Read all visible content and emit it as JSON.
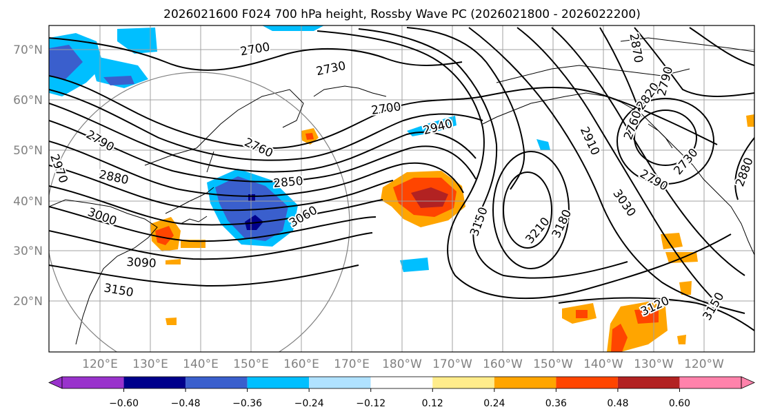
{
  "title": "2026021600 F024 700 hPa height, Rossby Wave PC (2026021800 - 2026022200)",
  "lat_labels": [
    "70°N",
    "60°N",
    "50°N",
    "40°N",
    "30°N",
    "20°N"
  ],
  "lon_labels": [
    "120°E",
    "130°E",
    "140°E",
    "150°E",
    "160°E",
    "170°E",
    "180°W",
    "170°W",
    "160°W",
    "150°W",
    "140°W",
    "130°W",
    "120°W"
  ],
  "contour_labels": [
    {
      "text": "2700"
    },
    {
      "text": "2730"
    },
    {
      "text": "2700"
    },
    {
      "text": "2790"
    },
    {
      "text": "2880"
    },
    {
      "text": "2760"
    },
    {
      "text": "2850"
    },
    {
      "text": "3060"
    },
    {
      "text": "3000"
    },
    {
      "text": "3090"
    },
    {
      "text": "3150"
    },
    {
      "text": "2940"
    },
    {
      "text": "3150"
    },
    {
      "text": "3210"
    },
    {
      "text": "3180"
    },
    {
      "text": "2910"
    },
    {
      "text": "3030"
    },
    {
      "text": "2790"
    },
    {
      "text": "2760"
    },
    {
      "text": "2820"
    },
    {
      "text": "2870"
    },
    {
      "text": "2790"
    },
    {
      "text": "2730"
    },
    {
      "text": "2880"
    },
    {
      "text": "3120"
    },
    {
      "text": "3150"
    },
    {
      "text": "2970"
    }
  ],
  "colorbar": {
    "colors": [
      "#9932cc",
      "#00008b",
      "#3a5fcd",
      "#00bfff",
      "#b0e2ff",
      "#ffffff",
      "#ffec8b",
      "#ffa500",
      "#ff4500",
      "#b22222",
      "#ff82ab"
    ],
    "ticks": [
      "−0.60",
      "−0.48",
      "−0.36",
      "−0.24",
      "−0.12",
      "0.12",
      "0.24",
      "0.36",
      "0.48",
      "0.60"
    ]
  }
}
